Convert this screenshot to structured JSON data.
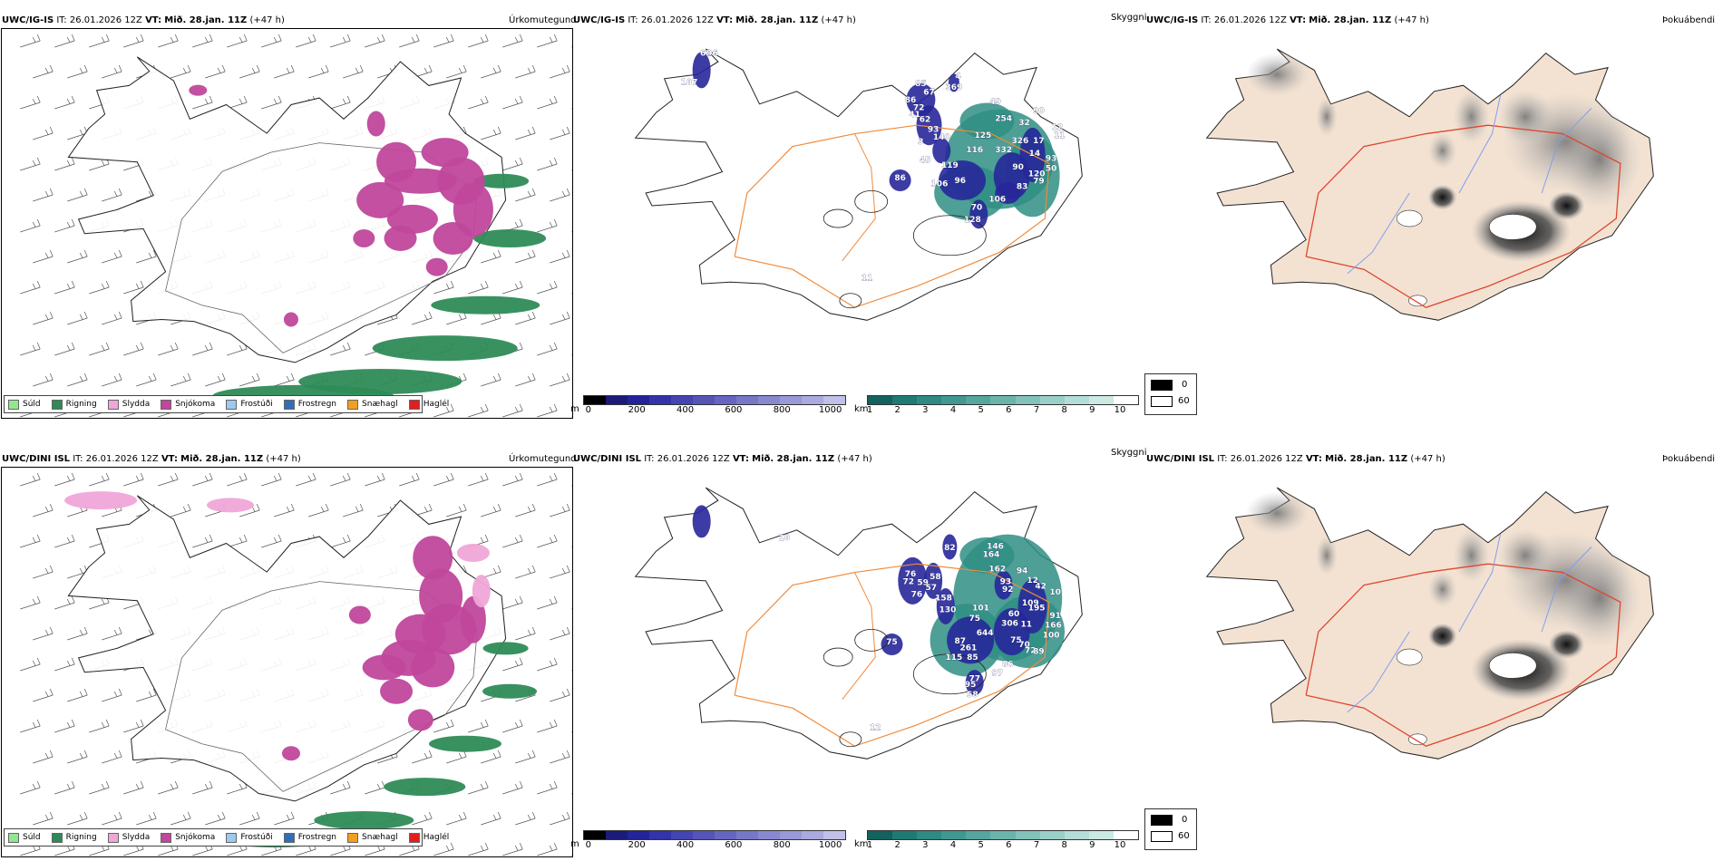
{
  "rows": [
    {
      "model": "UWC/IG-IS",
      "it_label": "IT:",
      "it_value": "26.01.2026 12Z",
      "vt_label": "VT:",
      "vt_value": "Mið. 28.jan. 11Z",
      "lead": "(+47 h)",
      "labels": [
        {
          "text": "62",
          "x": -22.6,
          "y": 66.52
        },
        {
          "text": "96",
          "x": -22.44,
          "y": 66.52
        },
        {
          "text": "107",
          "x": -23.0,
          "y": 66.18
        },
        {
          "text": "4",
          "x": -16.5,
          "y": 66.25
        },
        {
          "text": "85",
          "x": -17.4,
          "y": 66.16
        },
        {
          "text": "67",
          "x": -17.2,
          "y": 66.06
        },
        {
          "text": "86",
          "x": -17.65,
          "y": 65.97
        },
        {
          "text": "72",
          "x": -17.45,
          "y": 65.88
        },
        {
          "text": "62",
          "x": -17.3,
          "y": 65.74
        },
        {
          "text": "41",
          "x": -17.55,
          "y": 65.8
        },
        {
          "text": "93",
          "x": -17.1,
          "y": 65.62
        },
        {
          "text": "140",
          "x": -16.9,
          "y": 65.53
        },
        {
          "text": "3",
          "x": -17.4,
          "y": 65.48
        },
        {
          "text": "369",
          "x": -16.6,
          "y": 66.12
        },
        {
          "text": "116",
          "x": -16.1,
          "y": 65.38
        },
        {
          "text": "125",
          "x": -15.9,
          "y": 65.55
        },
        {
          "text": "119",
          "x": -16.7,
          "y": 65.2
        },
        {
          "text": "45",
          "x": -17.3,
          "y": 65.26
        },
        {
          "text": "86",
          "x": -17.9,
          "y": 65.05
        },
        {
          "text": "106",
          "x": -16.95,
          "y": 64.98
        },
        {
          "text": "96",
          "x": -16.45,
          "y": 65.02
        },
        {
          "text": "332",
          "x": -15.4,
          "y": 65.38
        },
        {
          "text": "326",
          "x": -15.0,
          "y": 65.49
        },
        {
          "text": "90",
          "x": -15.05,
          "y": 65.18
        },
        {
          "text": "83",
          "x": -14.95,
          "y": 64.95
        },
        {
          "text": "120",
          "x": -14.6,
          "y": 65.1
        },
        {
          "text": "79",
          "x": -14.55,
          "y": 65.01
        },
        {
          "text": "17",
          "x": -14.55,
          "y": 65.49
        },
        {
          "text": "12",
          "x": -14.1,
          "y": 65.65
        },
        {
          "text": "11",
          "x": -14.05,
          "y": 65.55
        },
        {
          "text": "14",
          "x": -14.65,
          "y": 65.34
        },
        {
          "text": "93",
          "x": -14.25,
          "y": 65.28
        },
        {
          "text": "50",
          "x": -14.25,
          "y": 65.16
        },
        {
          "text": "90",
          "x": -14.55,
          "y": 65.84
        },
        {
          "text": "32",
          "x": -14.9,
          "y": 65.7
        },
        {
          "text": "254",
          "x": -15.4,
          "y": 65.75
        },
        {
          "text": "106",
          "x": -15.55,
          "y": 64.8
        },
        {
          "text": "70",
          "x": -16.05,
          "y": 64.7
        },
        {
          "text": "128",
          "x": -16.15,
          "y": 64.56
        },
        {
          "text": "49",
          "x": -15.6,
          "y": 65.95
        },
        {
          "text": "11",
          "x": -18.7,
          "y": 63.87
        }
      ]
    },
    {
      "model": "UWC/DINI ISL",
      "it_label": "IT:",
      "it_value": "26.01.2026 12Z",
      "vt_label": "VT:",
      "vt_value": "Mið. 28.jan. 11Z",
      "lead": "(+47 h)",
      "labels": [
        {
          "text": "146",
          "x": -15.6,
          "y": 65.88
        },
        {
          "text": "82",
          "x": -16.7,
          "y": 65.86
        },
        {
          "text": "164",
          "x": -15.7,
          "y": 65.78
        },
        {
          "text": "162",
          "x": -15.55,
          "y": 65.61
        },
        {
          "text": "94",
          "x": -14.95,
          "y": 65.59
        },
        {
          "text": "12",
          "x": -14.7,
          "y": 65.48
        },
        {
          "text": "93",
          "x": -15.35,
          "y": 65.46
        },
        {
          "text": "92",
          "x": -15.3,
          "y": 65.37
        },
        {
          "text": "42",
          "x": -14.5,
          "y": 65.41
        },
        {
          "text": "10",
          "x": -14.15,
          "y": 65.34
        },
        {
          "text": "109",
          "x": -14.75,
          "y": 65.21
        },
        {
          "text": "195",
          "x": -14.6,
          "y": 65.15
        },
        {
          "text": "60",
          "x": -15.15,
          "y": 65.08
        },
        {
          "text": "306",
          "x": -15.25,
          "y": 64.97
        },
        {
          "text": "11",
          "x": -14.85,
          "y": 64.96
        },
        {
          "text": "75",
          "x": -15.1,
          "y": 64.77
        },
        {
          "text": "70",
          "x": -14.9,
          "y": 64.72
        },
        {
          "text": "72",
          "x": -14.75,
          "y": 64.65
        },
        {
          "text": "89",
          "x": -14.55,
          "y": 64.64
        },
        {
          "text": "100",
          "x": -14.25,
          "y": 64.83
        },
        {
          "text": "166",
          "x": -14.2,
          "y": 64.95
        },
        {
          "text": "91",
          "x": -14.15,
          "y": 65.06
        },
        {
          "text": "644",
          "x": -15.85,
          "y": 64.86
        },
        {
          "text": "75",
          "x": -16.1,
          "y": 65.03
        },
        {
          "text": "101",
          "x": -15.95,
          "y": 65.15
        },
        {
          "text": "87",
          "x": -16.45,
          "y": 64.76
        },
        {
          "text": "261",
          "x": -16.25,
          "y": 64.68
        },
        {
          "text": "85",
          "x": -16.15,
          "y": 64.57
        },
        {
          "text": "115",
          "x": -16.6,
          "y": 64.57
        },
        {
          "text": "86",
          "x": -15.3,
          "y": 64.49
        },
        {
          "text": "97",
          "x": -15.55,
          "y": 64.38
        },
        {
          "text": "77",
          "x": -16.1,
          "y": 64.32
        },
        {
          "text": "95",
          "x": -16.2,
          "y": 64.25
        },
        {
          "text": "58",
          "x": -16.15,
          "y": 64.13
        },
        {
          "text": "130",
          "x": -16.75,
          "y": 65.13
        },
        {
          "text": "158",
          "x": -16.85,
          "y": 65.27
        },
        {
          "text": "76",
          "x": -17.5,
          "y": 65.31
        },
        {
          "text": "72",
          "x": -17.7,
          "y": 65.46
        },
        {
          "text": "76",
          "x": -17.65,
          "y": 65.55
        },
        {
          "text": "59",
          "x": -17.35,
          "y": 65.45
        },
        {
          "text": "58",
          "x": -17.05,
          "y": 65.52
        },
        {
          "text": "57",
          "x": -17.15,
          "y": 65.39
        },
        {
          "text": "75",
          "x": -18.1,
          "y": 64.75
        },
        {
          "text": "10",
          "x": -20.7,
          "y": 65.98
        },
        {
          "text": "12",
          "x": -18.5,
          "y": 63.74
        }
      ]
    }
  ],
  "panel_titles": {
    "precip": "Úrkomutegund",
    "visibility": "Skyggni",
    "fog": "Þokuábendi"
  },
  "precip_legend": [
    {
      "label": "Súld",
      "color": "#8fe88f"
    },
    {
      "label": "Rigning",
      "color": "#2e8b57"
    },
    {
      "label": "Slydda",
      "color": "#f0a6d8"
    },
    {
      "label": "Snjókoma",
      "color": "#c0479b"
    },
    {
      "label": "Frostúði",
      "color": "#9ec9f0"
    },
    {
      "label": "Frostregn",
      "color": "#2f6fb8"
    },
    {
      "label": "Snæhagl",
      "color": "#f0a020"
    },
    {
      "label": "Haglél",
      "color": "#e02020"
    }
  ],
  "cloud_base_scale": {
    "unit": "m",
    "ticks": [
      "0",
      "200",
      "400",
      "600",
      "800",
      "1000"
    ],
    "colors": [
      "#000000",
      "#1b1b7a",
      "#23239a",
      "#3333aa",
      "#4444b2",
      "#5555b8",
      "#6666c0",
      "#7777c8",
      "#8888d0",
      "#9999d8",
      "#aaaadf",
      "#c0c0e8"
    ]
  },
  "visibility_scale": {
    "unit": "km",
    "ticks": [
      "1",
      "2",
      "3",
      "4",
      "5",
      "6",
      "7",
      "8",
      "9",
      "10"
    ],
    "colors": [
      "#13625e",
      "#1f7a74",
      "#2e8a83",
      "#409890",
      "#55a69d",
      "#6bb4ab",
      "#82c2b9",
      "#9ad0c7",
      "#b3ddd6",
      "#cce9e4",
      "#ffffff"
    ]
  },
  "fog_scale": {
    "black_label": "0",
    "white_label": "60"
  },
  "colors": {
    "snow": "#c0479b",
    "rain": "#2e8b57",
    "sleet": "#f0a6d8",
    "cloud": "#27279a",
    "vis": "#2f8e84",
    "land": "#f3e2d2",
    "road": "#f08a3a",
    "road_red": "#e0462e",
    "river": "#7f9ff0"
  }
}
